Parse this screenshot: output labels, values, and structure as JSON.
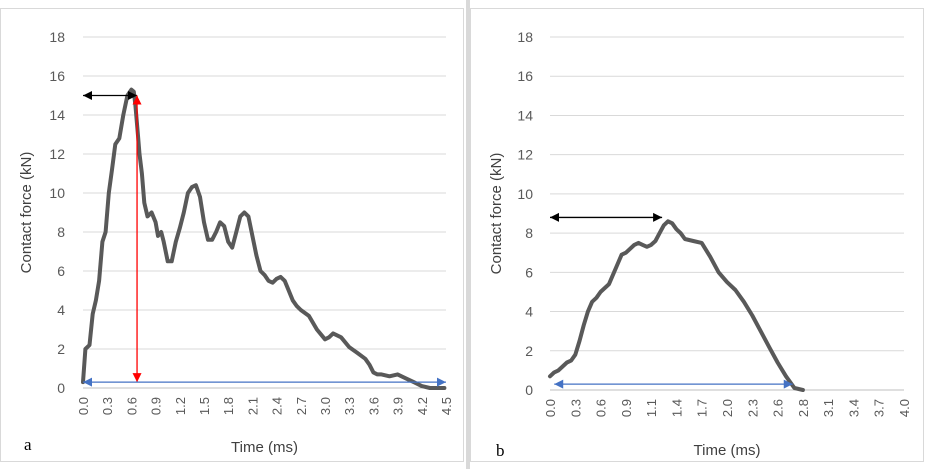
{
  "chart_data": [
    {
      "type": "line",
      "panel_label": "a",
      "xlabel": "Time (ms)",
      "ylabel": "Contact force (kN)",
      "ylim": [
        0,
        18
      ],
      "yticks": [
        "0",
        "2",
        "4",
        "6",
        "8",
        "10",
        "12",
        "14",
        "16",
        "18"
      ],
      "xlim": [
        0,
        4.5
      ],
      "xticks": [
        "0.0",
        "0.3",
        "0.6",
        "0.9",
        "1.2",
        "1.5",
        "1.8",
        "2.1",
        "2.4",
        "2.7",
        "3.0",
        "3.3",
        "3.6",
        "3.9",
        "4.2",
        "4.5"
      ],
      "grid": "horizontal",
      "legend": "none",
      "series_color": "#595959",
      "series": [
        {
          "x": [
            0.0,
            0.03,
            0.08,
            0.12,
            0.16,
            0.2,
            0.24,
            0.28,
            0.32,
            0.36,
            0.4,
            0.45,
            0.5,
            0.55,
            0.6,
            0.63,
            0.65,
            0.68,
            0.7,
            0.73,
            0.76,
            0.8,
            0.85,
            0.9,
            0.93,
            0.97,
            1.0,
            1.05,
            1.1,
            1.15,
            1.2,
            1.25,
            1.3,
            1.35,
            1.4,
            1.45,
            1.5,
            1.55,
            1.6,
            1.65,
            1.7,
            1.75,
            1.8,
            1.85,
            1.9,
            1.95,
            2.0,
            2.05,
            2.1,
            2.15,
            2.2,
            2.25,
            2.3,
            2.35,
            2.4,
            2.45,
            2.5,
            2.55,
            2.6,
            2.65,
            2.7,
            2.8,
            2.9,
            3.0,
            3.05,
            3.1,
            3.2,
            3.3,
            3.4,
            3.5,
            3.55,
            3.6,
            3.65,
            3.7,
            3.8,
            3.9,
            4.0,
            4.1,
            4.2,
            4.3,
            4.35,
            4.4,
            4.45,
            4.48
          ],
          "y": [
            0.3,
            2.0,
            2.2,
            3.8,
            4.5,
            5.5,
            7.5,
            8.0,
            10.0,
            11.2,
            12.5,
            12.8,
            14.0,
            15.0,
            15.3,
            15.2,
            14.5,
            13.0,
            12.0,
            11.0,
            9.5,
            8.8,
            9.0,
            8.5,
            7.8,
            8.0,
            7.5,
            6.5,
            6.5,
            7.5,
            8.2,
            9.0,
            10.0,
            10.3,
            10.4,
            9.8,
            8.5,
            7.6,
            7.6,
            8.0,
            8.5,
            8.3,
            7.5,
            7.2,
            8.0,
            8.8,
            9.0,
            8.8,
            7.8,
            6.8,
            6.0,
            5.8,
            5.5,
            5.4,
            5.6,
            5.7,
            5.5,
            5.0,
            4.5,
            4.2,
            4.0,
            3.7,
            3.0,
            2.5,
            2.6,
            2.8,
            2.6,
            2.1,
            1.8,
            1.5,
            1.2,
            0.8,
            0.7,
            0.7,
            0.6,
            0.7,
            0.5,
            0.3,
            0.1,
            0.0,
            0.0,
            0.0,
            0.0,
            0.0
          ]
        }
      ]
    },
    {
      "type": "line",
      "panel_label": "b",
      "xlabel": "Time (ms)",
      "ylabel": "Contact force (kN)",
      "ylim": [
        0,
        18
      ],
      "yticks": [
        "0",
        "2",
        "4",
        "6",
        "8",
        "10",
        "12",
        "14",
        "16",
        "18"
      ],
      "xlim": [
        0,
        4.2
      ],
      "xticks": [
        "0.0",
        "0.3",
        "0.6",
        "0.9",
        "1.1",
        "1.4",
        "1.7",
        "2.0",
        "2.3",
        "2.6",
        "2.8",
        "3.1",
        "3.4",
        "3.7",
        "4.0"
      ],
      "grid": "horizontal",
      "legend": "none",
      "series_color": "#595959",
      "series": [
        {
          "x": [
            0.0,
            0.05,
            0.1,
            0.15,
            0.2,
            0.25,
            0.3,
            0.35,
            0.4,
            0.45,
            0.5,
            0.55,
            0.6,
            0.7,
            0.8,
            0.85,
            0.9,
            1.0,
            1.05,
            1.1,
            1.15,
            1.2,
            1.25,
            1.3,
            1.35,
            1.4,
            1.45,
            1.5,
            1.55,
            1.6,
            1.7,
            1.8,
            1.9,
            2.0,
            2.1,
            2.2,
            2.3,
            2.4,
            2.5,
            2.6,
            2.7,
            2.8,
            2.85,
            2.9,
            3.0
          ],
          "y": [
            0.7,
            0.9,
            1.0,
            1.2,
            1.4,
            1.5,
            1.8,
            2.5,
            3.3,
            4.0,
            4.5,
            4.7,
            5.0,
            5.4,
            6.4,
            6.9,
            7.0,
            7.4,
            7.5,
            7.4,
            7.3,
            7.4,
            7.6,
            8.0,
            8.4,
            8.6,
            8.5,
            8.2,
            8.0,
            7.7,
            7.6,
            7.5,
            6.8,
            6.0,
            5.5,
            5.1,
            4.5,
            3.8,
            3.0,
            2.2,
            1.4,
            0.7,
            0.4,
            0.1,
            0.0
          ]
        }
      ]
    }
  ]
}
